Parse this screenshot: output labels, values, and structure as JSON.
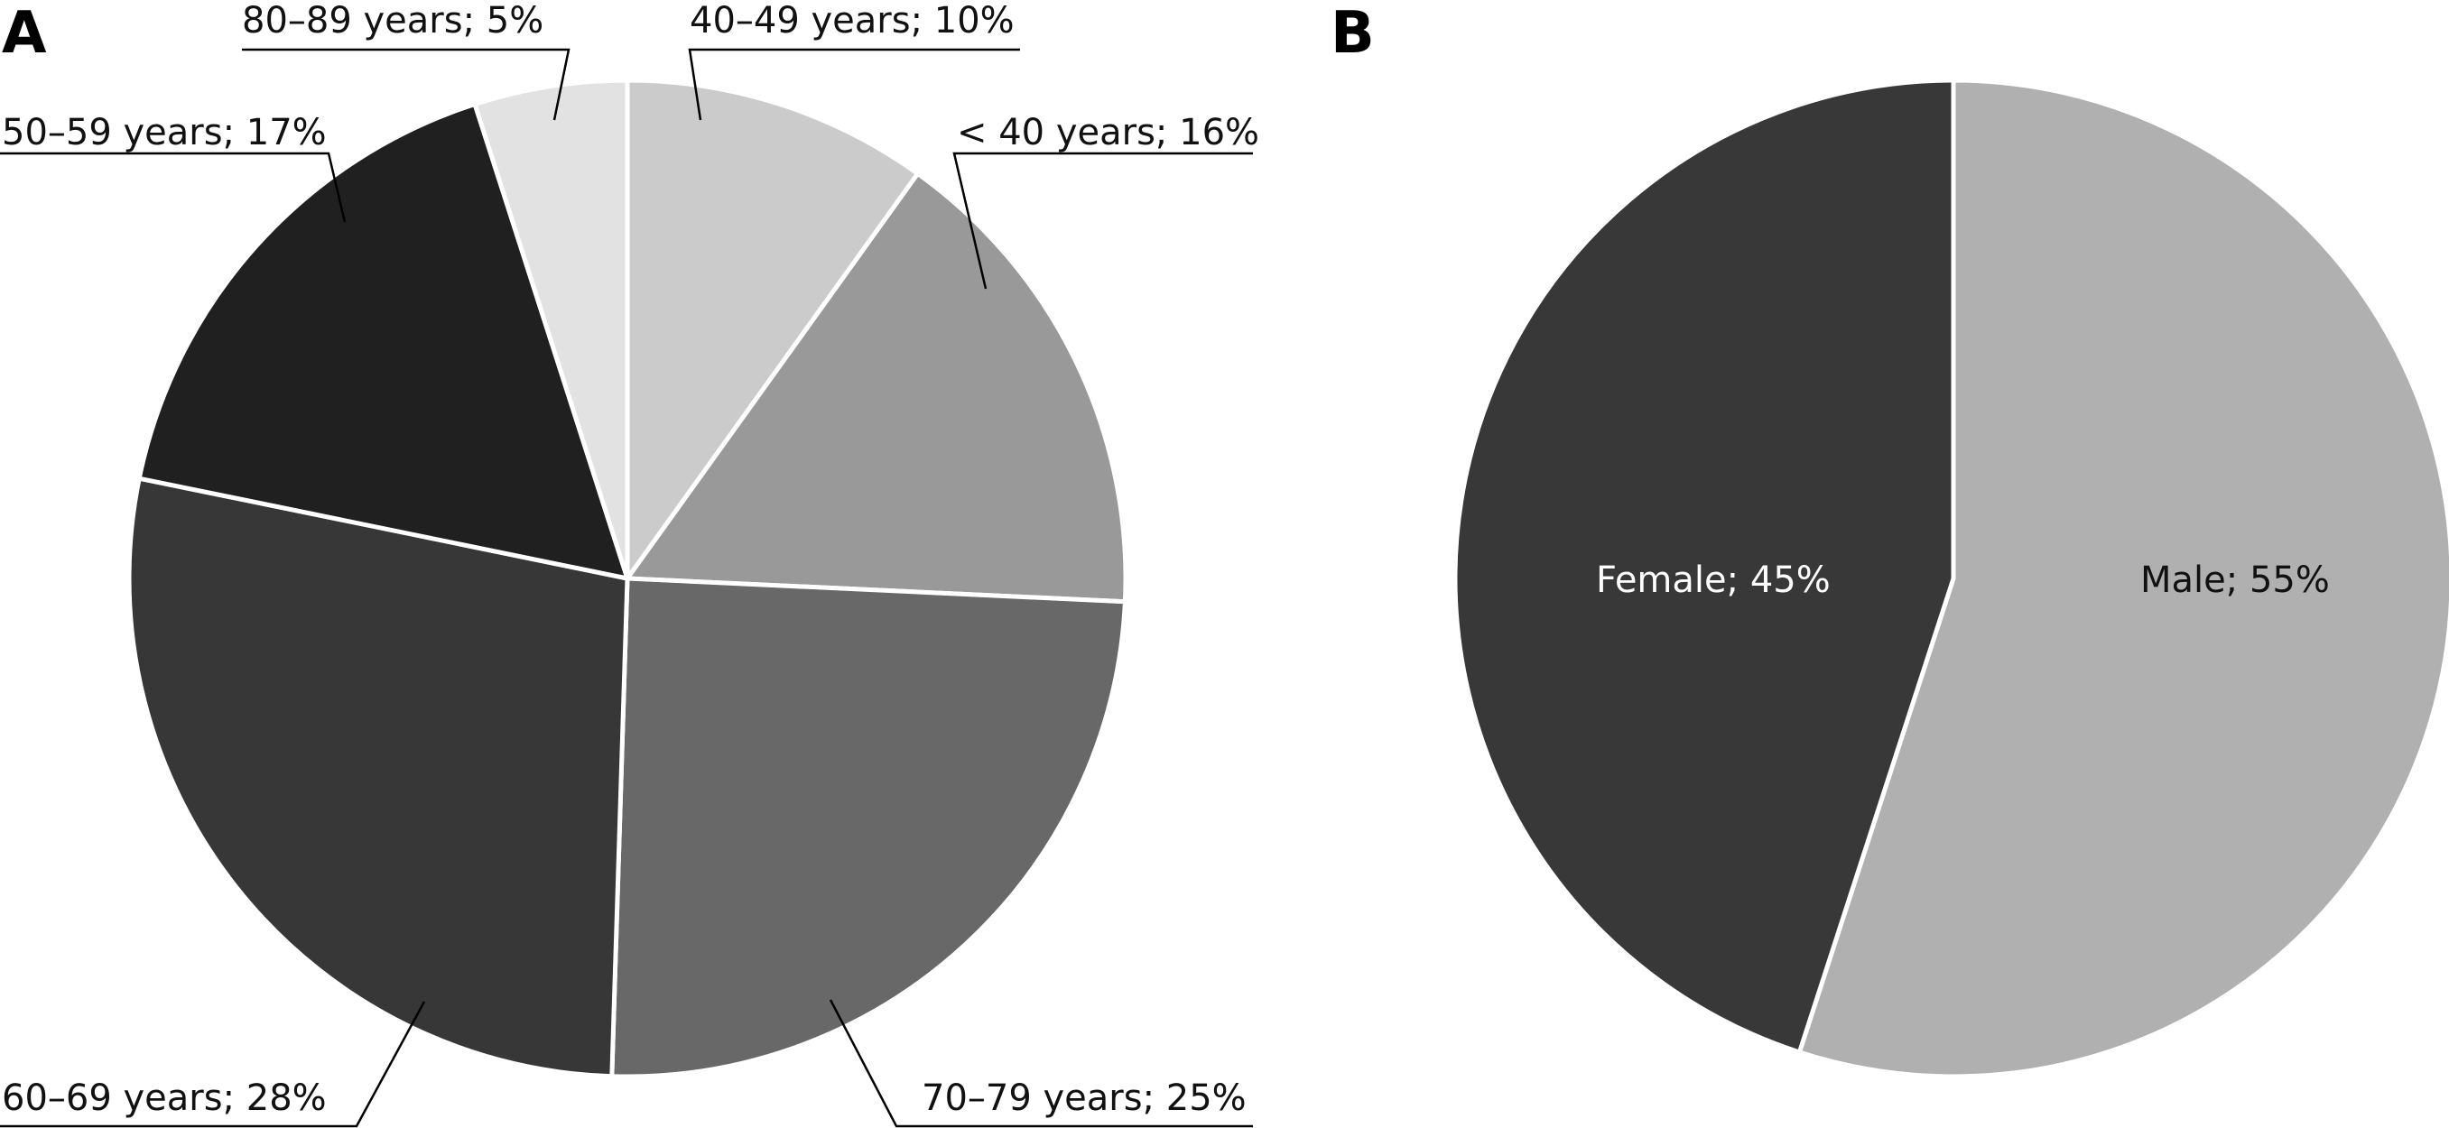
{
  "chart_data": [
    {
      "type": "pie",
      "panel_label": "A",
      "slices": [
        {
          "label": "40–49 years; 10%",
          "value": 10,
          "color": "#cbcbcb"
        },
        {
          "label": "< 40 years; 16%",
          "value": 16,
          "color": "#999999"
        },
        {
          "label": "70–79 years; 25%",
          "value": 25,
          "color": "#686868"
        },
        {
          "label": "60–69 years; 28%",
          "value": 28,
          "color": "#373737"
        },
        {
          "label": "50–59 years; 17%",
          "value": 17,
          "color": "#202020"
        },
        {
          "label": "80–89 years; 5%",
          "value": 5,
          "color": "#e2e2e2"
        }
      ]
    },
    {
      "type": "pie",
      "panel_label": "B",
      "slices": [
        {
          "label": "Male; 55%",
          "value": 55,
          "color": "#b0b0b0"
        },
        {
          "label": "Female; 45%",
          "value": 45,
          "color": "#383838"
        }
      ]
    }
  ]
}
